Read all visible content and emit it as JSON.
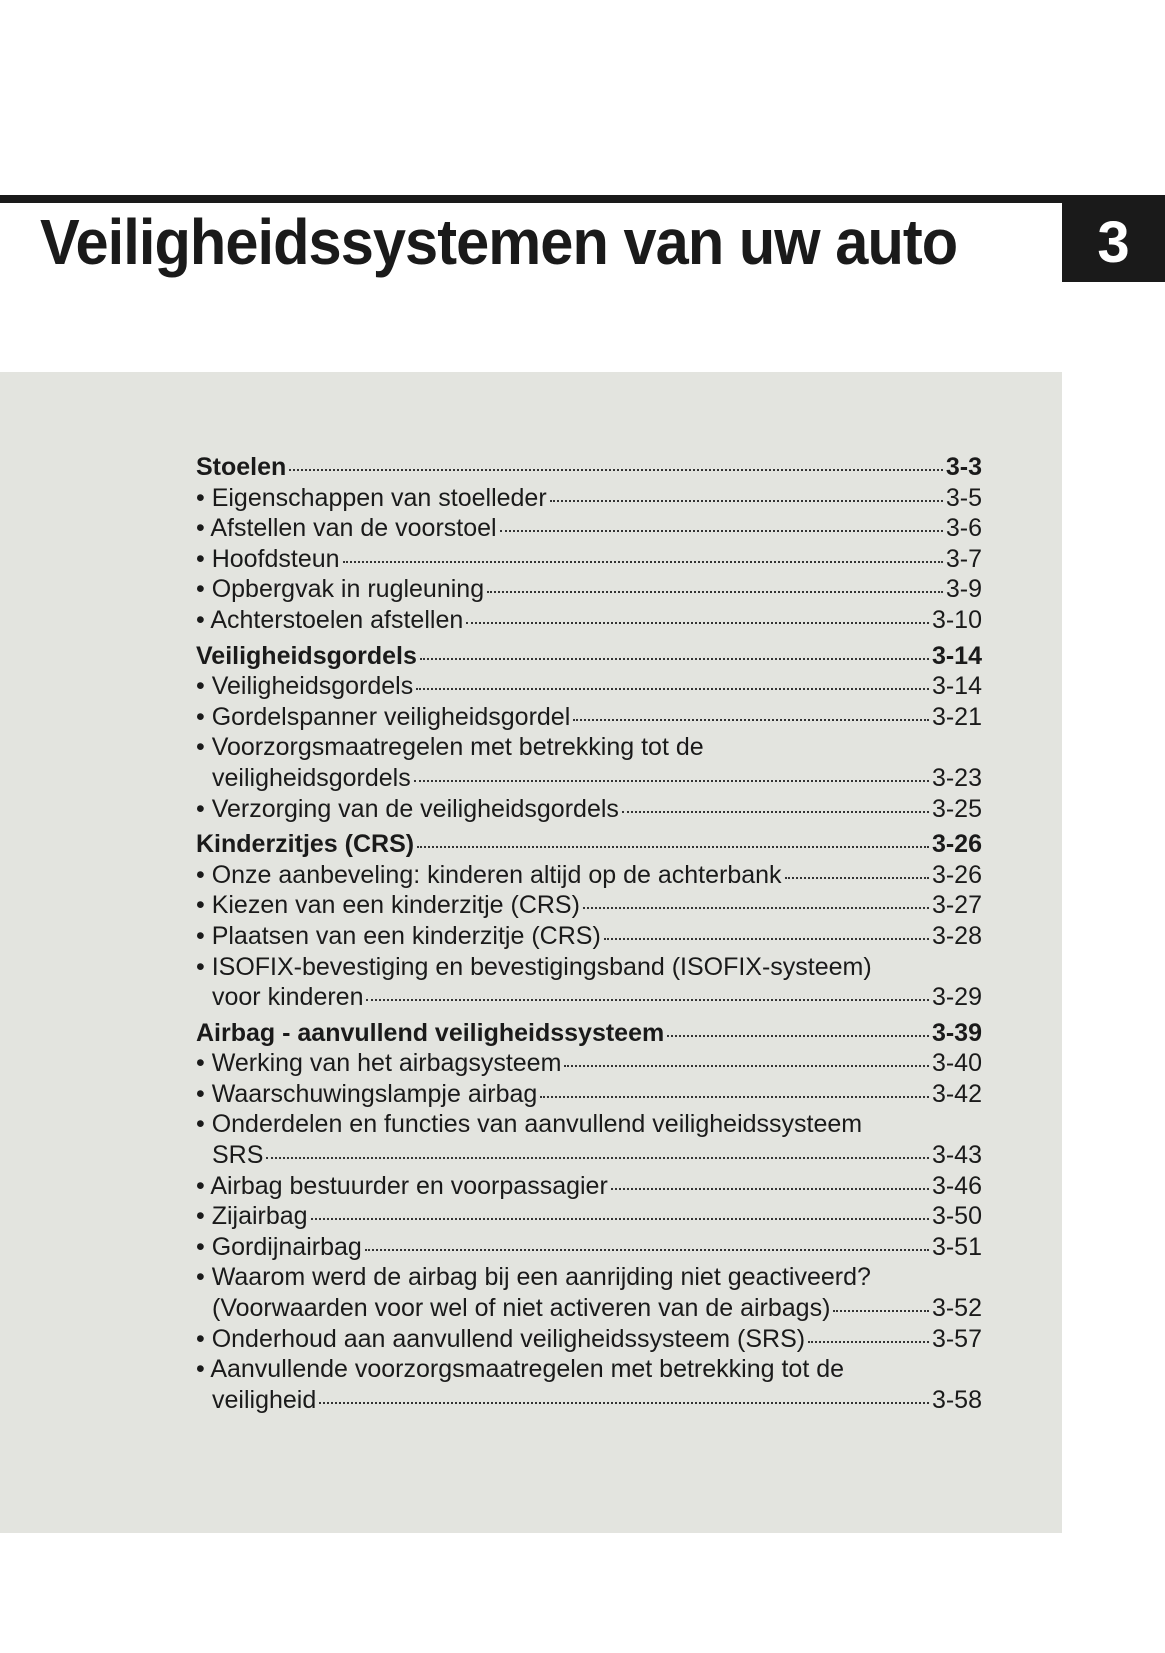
{
  "header": {
    "title": "Veiligheidssystemen van uw auto",
    "chapter_number": "3"
  },
  "toc": [
    {
      "type": "section",
      "label": "Stoelen",
      "page": "3-3"
    },
    {
      "type": "item",
      "label": "• Eigenschappen van stoelleder",
      "page": "3-5"
    },
    {
      "type": "item",
      "label": "• Afstellen van de voorstoel",
      "page": "3-6"
    },
    {
      "type": "item",
      "label": "• Hoofdsteun",
      "page": "3-7"
    },
    {
      "type": "item",
      "label": "• Opbergvak in rugleuning",
      "page": "3-9"
    },
    {
      "type": "item",
      "label": "• Achterstoelen afstellen",
      "page": "3-10"
    },
    {
      "type": "section",
      "label": "Veiligheidsgordels",
      "page": "3-14"
    },
    {
      "type": "item",
      "label": "• Veiligheidsgordels",
      "page": "3-14"
    },
    {
      "type": "item",
      "label": "• Gordelspanner veiligheidsgordel",
      "page": "3-21"
    },
    {
      "type": "item",
      "label": "• Voorzorgsmaatregelen met betrekking tot de",
      "continuation": "veiligheidsgordels",
      "page": "3-23"
    },
    {
      "type": "item",
      "label": "• Verzorging van de veiligheidsgordels",
      "page": "3-25"
    },
    {
      "type": "section",
      "label": "Kinderzitjes (CRS)",
      "page": "3-26"
    },
    {
      "type": "item",
      "label": "• Onze aanbeveling: kinderen altijd op de achterbank",
      "page": "3-26"
    },
    {
      "type": "item",
      "label": "• Kiezen van een kinderzitje (CRS)",
      "page": "3-27"
    },
    {
      "type": "item",
      "label": "• Plaatsen van een kinderzitje (CRS)",
      "page": "3-28"
    },
    {
      "type": "item",
      "label": "• ISOFIX-bevestiging en bevestigingsband (ISOFIX-systeem)",
      "continuation": "voor kinderen",
      "page": "3-29"
    },
    {
      "type": "section",
      "label": "Airbag - aanvullend veiligheidssysteem",
      "page": "3-39"
    },
    {
      "type": "item",
      "label": "• Werking van het airbagsysteem",
      "page": "3-40"
    },
    {
      "type": "item",
      "label": "• Waarschuwingslampje airbag",
      "page": "3-42"
    },
    {
      "type": "item",
      "label": "• Onderdelen en functies van aanvullend veiligheidssysteem",
      "continuation": "SRS",
      "page": "3-43"
    },
    {
      "type": "item",
      "label": "• Airbag bestuurder en voorpassagier",
      "page": "3-46"
    },
    {
      "type": "item",
      "label": "• Zijairbag",
      "page": "3-50"
    },
    {
      "type": "item",
      "label": "• Gordijnairbag",
      "page": "3-51"
    },
    {
      "type": "item",
      "label": "• Waarom werd de airbag bij een aanrijding niet geactiveerd?",
      "continuation": "(Voorwaarden voor wel of niet activeren van de airbags)",
      "page": "3-52"
    },
    {
      "type": "item",
      "label": "• Onderhoud aan aanvullend veiligheidssysteem (SRS)",
      "page": "3-57"
    },
    {
      "type": "item",
      "label": "• Aanvullende voorzorgsmaatregelen met betrekking tot de",
      "continuation": "veiligheid",
      "page": "3-58"
    }
  ]
}
